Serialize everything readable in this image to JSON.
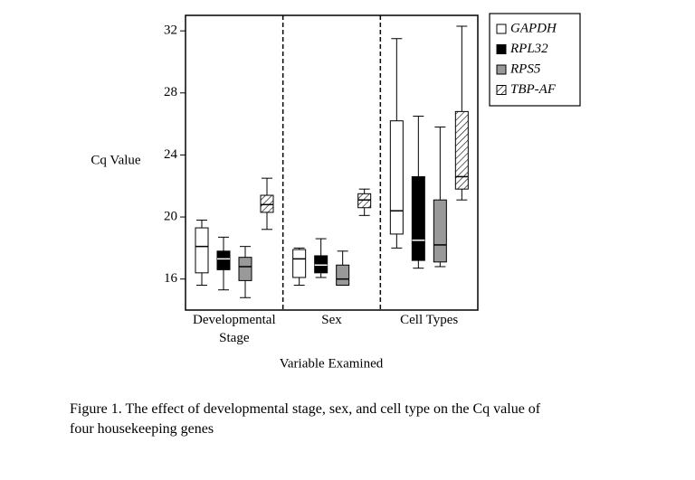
{
  "chart_data": {
    "type": "box",
    "y_label": "Cq Value",
    "x_label": "Variable Examined",
    "categories": [
      "Developmental Stage",
      "Sex",
      "Cell Types"
    ],
    "ylim": [
      14,
      33
    ],
    "yticks": [
      16,
      20,
      24,
      28,
      32
    ],
    "legend": "outside-right",
    "series": [
      {
        "name": "GAPDH",
        "color": "#ffffff",
        "hatch": false,
        "min": [
          15.6,
          15.6,
          18.0
        ],
        "q1": [
          16.4,
          16.1,
          18.9
        ],
        "median": [
          18.1,
          17.3,
          20.4
        ],
        "q3": [
          19.3,
          17.9,
          26.2
        ],
        "max": [
          19.8,
          18.0,
          31.5
        ]
      },
      {
        "name": "RPL32",
        "color": "#000000",
        "hatch": false,
        "min": [
          15.3,
          16.1,
          16.7
        ],
        "q1": [
          16.6,
          16.4,
          17.2
        ],
        "median": [
          17.3,
          16.9,
          18.5
        ],
        "q3": [
          17.8,
          17.5,
          22.6
        ],
        "max": [
          18.7,
          18.6,
          26.5
        ]
      },
      {
        "name": "RPS5",
        "color": "#999999",
        "hatch": false,
        "min": [
          14.8,
          15.6,
          16.8
        ],
        "q1": [
          15.9,
          15.6,
          17.1
        ],
        "median": [
          16.8,
          16.0,
          18.2
        ],
        "q3": [
          17.4,
          16.9,
          21.1
        ],
        "max": [
          18.1,
          17.8,
          25.8
        ]
      },
      {
        "name": "TBP-AF",
        "color": "#ffffff",
        "hatch": true,
        "min": [
          19.2,
          20.1,
          21.1
        ],
        "q1": [
          20.3,
          20.6,
          21.8
        ],
        "median": [
          20.8,
          21.1,
          22.6
        ],
        "q3": [
          21.4,
          21.5,
          26.8
        ],
        "max": [
          22.5,
          21.8,
          32.3
        ]
      }
    ]
  },
  "caption": "Figure 1. The effect of developmental stage, sex, and cell type on the Cq value of four housekeeping genes"
}
